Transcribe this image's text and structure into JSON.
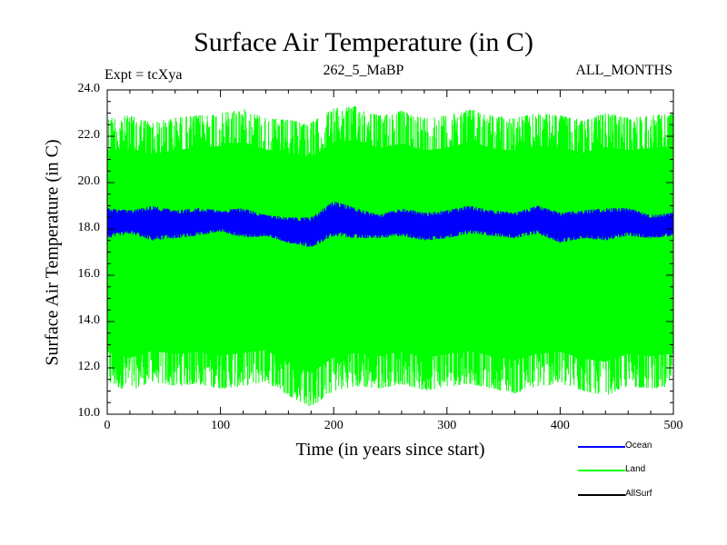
{
  "chart_data": {
    "type": "line",
    "title": "Surface Air Temperature (in C)",
    "subtitle_left": "Expt = tcXya",
    "subtitle_center": "262_5_MaBP",
    "subtitle_right": "ALL_MONTHS",
    "xlabel": "Time (in years since start)",
    "ylabel": "Surface Air Temperature (in C)",
    "xlim": [
      0,
      500
    ],
    "ylim": [
      10.0,
      24.0
    ],
    "x_ticks": [
      0,
      100,
      200,
      300,
      400,
      500
    ],
    "x_tick_labels": [
      "0",
      "100",
      "200",
      "300",
      "400",
      "500"
    ],
    "y_ticks": [
      10.0,
      12.0,
      14.0,
      16.0,
      18.0,
      20.0,
      22.0,
      24.0
    ],
    "y_tick_labels": [
      "10.0",
      "12.0",
      "14.0",
      "16.0",
      "18.0",
      "20.0",
      "22.0",
      "24.0"
    ],
    "grid": false,
    "legend_position": "bottom-right",
    "series": [
      {
        "name": "Ocean",
        "color": "#0000ff",
        "x": [
          0,
          20,
          40,
          60,
          80,
          100,
          120,
          140,
          160,
          180,
          200,
          220,
          240,
          260,
          280,
          300,
          320,
          340,
          360,
          380,
          400,
          420,
          440,
          460,
          480,
          500
        ],
        "band_low": [
          17.6,
          17.8,
          17.5,
          17.6,
          17.7,
          17.9,
          17.6,
          17.7,
          17.4,
          17.2,
          17.7,
          17.6,
          17.6,
          17.7,
          17.5,
          17.6,
          17.8,
          17.7,
          17.6,
          17.8,
          17.4,
          17.6,
          17.5,
          17.7,
          17.6,
          17.7
        ],
        "band_high": [
          18.9,
          18.8,
          19.0,
          18.8,
          18.9,
          18.8,
          18.9,
          18.6,
          18.5,
          18.5,
          19.2,
          18.9,
          18.6,
          18.9,
          18.7,
          18.8,
          19.0,
          18.8,
          18.7,
          19.0,
          18.7,
          18.8,
          18.9,
          18.9,
          18.6,
          18.7
        ],
        "mean": 18.2
      },
      {
        "name": "Land",
        "color": "#00ff00",
        "x": [
          0,
          20,
          40,
          60,
          80,
          100,
          120,
          140,
          160,
          180,
          200,
          220,
          240,
          260,
          280,
          300,
          320,
          340,
          360,
          380,
          400,
          420,
          440,
          460,
          480,
          500
        ],
        "band_low": [
          11.3,
          11.0,
          11.4,
          11.2,
          11.3,
          11.1,
          11.2,
          11.4,
          10.8,
          10.3,
          11.0,
          11.2,
          11.1,
          11.3,
          11.0,
          11.2,
          11.3,
          11.1,
          10.9,
          11.2,
          11.3,
          11.0,
          10.8,
          11.2,
          11.1,
          11.2
        ],
        "band_high": [
          22.8,
          22.9,
          22.6,
          22.8,
          22.9,
          23.0,
          23.2,
          22.8,
          22.7,
          22.6,
          23.2,
          23.3,
          22.9,
          23.1,
          22.8,
          22.9,
          23.2,
          22.9,
          22.8,
          23.0,
          22.9,
          22.7,
          23.0,
          22.8,
          22.9,
          23.0
        ],
        "mean": 17.2
      },
      {
        "name": "AllSurf",
        "color": "#000000"
      }
    ]
  }
}
